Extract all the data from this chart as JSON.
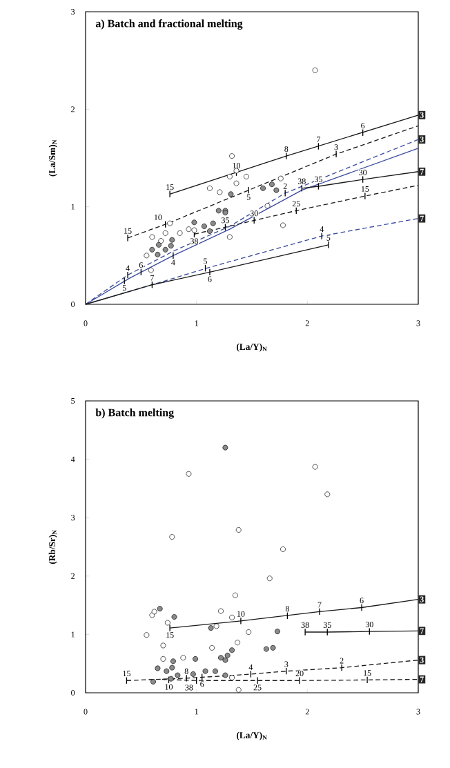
{
  "chart_data": [
    {
      "type": "scatter",
      "title": "a) Batch and fractional melting",
      "xlabel": "(La/Y)$_{N}$",
      "ylabel": "(La/Sm)$_{N}$",
      "xlim": [
        0,
        3
      ],
      "ylim": [
        0,
        3
      ],
      "xticks": [
        0,
        1,
        2,
        3
      ],
      "yticks": [
        0,
        1,
        2,
        3
      ],
      "series": [
        {
          "type": "scatter",
          "marker": "circle",
          "color": "#ffffff",
          "x": [
            2.07,
            1.32,
            1.36,
            1.3,
            1.36,
            1.45,
            1.12,
            1.21,
            1.76,
            1.64,
            1.78,
            1.3,
            0.76,
            0.6,
            0.72,
            0.68,
            0.85,
            0.93,
            0.55,
            0.59,
            0.98
          ],
          "values": [
            2.4,
            1.52,
            1.37,
            1.31,
            1.24,
            1.31,
            1.19,
            1.15,
            1.29,
            1.01,
            0.81,
            0.69,
            0.83,
            0.69,
            0.73,
            0.65,
            0.73,
            0.77,
            0.5,
            0.35,
            0.76
          ]
        },
        {
          "type": "scatter",
          "marker": "circle",
          "color": "#8a8a8a",
          "x": [
            1.31,
            1.6,
            1.68,
            1.72,
            1.2,
            1.26,
            1.26,
            0.98,
            1.07,
            1.15,
            1.12,
            0.6,
            0.65,
            0.72,
            0.77,
            0.78,
            0.66
          ],
          "values": [
            1.13,
            1.19,
            1.23,
            1.17,
            0.96,
            0.96,
            0.94,
            0.84,
            0.8,
            0.83,
            0.75,
            0.56,
            0.51,
            0.56,
            0.6,
            0.66,
            0.61
          ]
        },
        {
          "type": "line",
          "line_style": "solid",
          "color": "#1a1a1a",
          "x": [
            0.76,
            1.81,
            3
          ],
          "values": [
            1.13,
            1.52,
            1.94
          ]
        },
        {
          "type": "line",
          "line_style": "dashed",
          "color": "#1a1a1a",
          "x": [
            0.38,
            0.72,
            1.47,
            2.26,
            3
          ],
          "values": [
            0.68,
            0.82,
            1.17,
            1.54,
            1.83
          ]
        },
        {
          "type": "line",
          "line_style": "dashed",
          "color": "#3b4b9e",
          "x": [
            0,
            0.38,
            0.8,
            1.3,
            1.8,
            3
          ],
          "values": [
            0,
            0.3,
            0.55,
            0.8,
            1.14,
            1.69
          ]
        },
        {
          "type": "line",
          "line_style": "solid",
          "color": "#3b4b9e",
          "x": [
            0,
            0.4,
            0.79,
            1.3,
            1.95,
            3
          ],
          "values": [
            0,
            0.27,
            0.5,
            0.77,
            1.17,
            1.6
          ]
        },
        {
          "type": "line",
          "line_style": "solid",
          "color": "#1a1a1a",
          "x": [
            1.95,
            2.1,
            2.5,
            3
          ],
          "values": [
            1.19,
            1.21,
            1.28,
            1.36
          ]
        },
        {
          "type": "line",
          "line_style": "dashed",
          "color": "#1a1a1a",
          "x": [
            0.98,
            1.26,
            1.52,
            1.9,
            2.52,
            3
          ],
          "values": [
            0.72,
            0.79,
            0.86,
            0.96,
            1.11,
            1.22
          ]
        },
        {
          "type": "line",
          "line_style": "dashed",
          "color": "#3b4b9e",
          "x": [
            0,
            0.6,
            1.12,
            2.13,
            3
          ],
          "values": [
            0,
            0.2,
            0.38,
            0.7,
            0.88
          ]
        },
        {
          "type": "line",
          "line_style": "solid",
          "color": "#1a1a1a",
          "x": [
            0,
            0.6,
            1.12,
            2.19
          ],
          "values": [
            0,
            0.2,
            0.33,
            0.61
          ]
        }
      ],
      "annotations": [
        {
          "text": "15",
          "x": 0.76,
          "y": 1.13
        },
        {
          "text": "10",
          "x": 1.36,
          "y": 1.35
        },
        {
          "text": "8",
          "x": 1.81,
          "y": 1.52
        },
        {
          "text": "7",
          "x": 2.1,
          "y": 1.62
        },
        {
          "text": "6",
          "x": 2.5,
          "y": 1.76
        },
        {
          "text": "15",
          "x": 0.38,
          "y": 0.68
        },
        {
          "text": "10",
          "x": 0.72,
          "y": 0.82
        },
        {
          "text": "5",
          "x": 1.47,
          "y": 1.17
        },
        {
          "text": "3",
          "x": 2.26,
          "y": 1.54
        },
        {
          "text": "4",
          "x": 0.38,
          "y": 0.3
        },
        {
          "text": "5",
          "x": 0.35,
          "y": 0.24
        },
        {
          "text": "2",
          "x": 1.8,
          "y": 1.14
        },
        {
          "text": "4",
          "x": 0.79,
          "y": 0.5
        },
        {
          "text": "38",
          "x": 1.95,
          "y": 1.19
        },
        {
          "text": "35",
          "x": 2.1,
          "y": 1.21
        },
        {
          "text": "30",
          "x": 2.5,
          "y": 1.28
        },
        {
          "text": "38",
          "x": 0.98,
          "y": 0.72
        },
        {
          "text": "35",
          "x": 1.26,
          "y": 0.79
        },
        {
          "text": "30",
          "x": 1.52,
          "y": 0.86
        },
        {
          "text": "25",
          "x": 1.9,
          "y": 0.96
        },
        {
          "text": "15",
          "x": 2.52,
          "y": 1.11
        },
        {
          "text": "7",
          "x": 0.6,
          "y": 0.2
        },
        {
          "text": "6",
          "x": 0.5,
          "y": 0.33
        },
        {
          "text": "5",
          "x": 1.08,
          "y": 0.37
        },
        {
          "text": "4",
          "x": 2.13,
          "y": 0.7
        },
        {
          "text": "6",
          "x": 1.12,
          "y": 0.33
        },
        {
          "text": "5",
          "x": 2.19,
          "y": 0.61
        },
        {
          "text": "3",
          "x": 3,
          "y": 1.94
        },
        {
          "text": "3",
          "x": 3,
          "y": 1.69
        },
        {
          "text": "7",
          "x": 3,
          "y": 1.36
        },
        {
          "text": "7",
          "x": 3,
          "y": 0.88
        }
      ]
    },
    {
      "type": "scatter",
      "title": "b) Batch melting",
      "xlabel": "(La/Y)$_{N}$",
      "ylabel": "(Rb/Sr)$_{N}$",
      "xlim": [
        0,
        3
      ],
      "ylim": [
        0,
        5
      ],
      "xticks": [
        0,
        1,
        2,
        3
      ],
      "yticks": [
        0,
        1,
        2,
        3,
        4,
        5
      ],
      "series": [
        {
          "type": "scatter",
          "marker": "circle",
          "color": "#ffffff",
          "x": [
            0.93,
            2.07,
            2.18,
            0.78,
            1.38,
            1.78,
            1.66,
            1.35,
            1.22,
            1.32,
            1.18,
            1.47,
            1.37,
            1.14,
            0.6,
            0.62,
            0.74,
            0.55,
            0.7,
            0.7,
            0.88,
            1.38,
            1.32
          ],
          "values": [
            3.75,
            3.87,
            3.4,
            2.67,
            2.79,
            2.46,
            1.96,
            1.67,
            1.4,
            1.29,
            1.14,
            1.04,
            0.86,
            0.77,
            1.33,
            1.39,
            1.2,
            0.99,
            0.81,
            0.58,
            0.6,
            0.05,
            0.26
          ]
        },
        {
          "type": "scatter",
          "marker": "circle",
          "color": "#8a8a8a",
          "x": [
            1.26,
            0.67,
            0.8,
            1.13,
            1.73,
            1.63,
            1.69,
            1.32,
            1.28,
            1.22,
            1.26,
            0.99,
            0.65,
            0.79,
            0.78,
            0.73,
            0.83,
            0.77,
            0.61,
            0.97,
            1.08,
            1.17,
            1.26
          ],
          "values": [
            4.2,
            1.44,
            1.3,
            1.11,
            1.05,
            0.75,
            0.77,
            0.73,
            0.64,
            0.6,
            0.56,
            0.58,
            0.42,
            0.54,
            0.43,
            0.37,
            0.3,
            0.24,
            0.19,
            0.32,
            0.37,
            0.37,
            0.3
          ]
        },
        {
          "type": "line",
          "line_style": "solid",
          "color": "#1a1a1a",
          "x": [
            0.76,
            1.4,
            2.11,
            2.49,
            3
          ],
          "values": [
            1.11,
            1.23,
            1.39,
            1.46,
            1.6
          ]
        },
        {
          "type": "line",
          "line_style": "solid",
          "color": "#1a1a1a",
          "x": [
            1.98,
            2.18,
            2.56,
            3
          ],
          "values": [
            1.04,
            1.04,
            1.05,
            1.06
          ]
        },
        {
          "type": "line",
          "line_style": "dashed",
          "color": "#1a1a1a",
          "x": [
            0.37,
            0.91,
            1.26,
            1.49,
            1.81,
            2.31,
            3
          ],
          "values": [
            0.21,
            0.25,
            0.29,
            0.32,
            0.37,
            0.43,
            0.56
          ]
        },
        {
          "type": "line",
          "line_style": "dashed",
          "color": "#1a1a1a",
          "x": [
            0.69,
            1.0,
            1.55,
            1.93,
            2.54,
            3
          ],
          "values": [
            0.23,
            0.21,
            0.21,
            0.21,
            0.22,
            0.23
          ]
        }
      ],
      "annotations": [
        {
          "text": "15",
          "x": 0.76,
          "y": 1.11
        },
        {
          "text": "10",
          "x": 1.4,
          "y": 1.23
        },
        {
          "text": "8",
          "x": 1.82,
          "y": 1.32
        },
        {
          "text": "7",
          "x": 2.11,
          "y": 1.39
        },
        {
          "text": "6",
          "x": 2.49,
          "y": 1.46
        },
        {
          "text": "38",
          "x": 1.98,
          "y": 1.04
        },
        {
          "text": "35",
          "x": 2.18,
          "y": 1.04
        },
        {
          "text": "30",
          "x": 2.56,
          "y": 1.05
        },
        {
          "text": "15",
          "x": 0.37,
          "y": 0.21
        },
        {
          "text": "8",
          "x": 0.91,
          "y": 0.25
        },
        {
          "text": "6",
          "x": 1.05,
          "y": 0.27
        },
        {
          "text": "4",
          "x": 1.49,
          "y": 0.32
        },
        {
          "text": "3",
          "x": 1.81,
          "y": 0.37
        },
        {
          "text": "2",
          "x": 2.31,
          "y": 0.43
        },
        {
          "text": "10",
          "x": 0.75,
          "y": 0.22
        },
        {
          "text": "38",
          "x": 1.0,
          "y": 0.21
        },
        {
          "text": "25",
          "x": 1.55,
          "y": 0.21
        },
        {
          "text": "20",
          "x": 1.93,
          "y": 0.21
        },
        {
          "text": "15",
          "x": 2.54,
          "y": 0.22
        },
        {
          "text": "3",
          "x": 3,
          "y": 1.6
        },
        {
          "text": "7",
          "x": 3,
          "y": 1.06
        },
        {
          "text": "3",
          "x": 3,
          "y": 0.56
        },
        {
          "text": "7",
          "x": 3,
          "y": 0.23
        }
      ]
    }
  ]
}
